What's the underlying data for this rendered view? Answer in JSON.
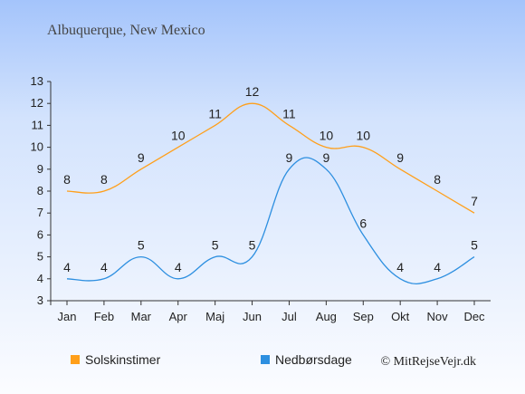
{
  "chart_data": {
    "type": "line",
    "title": "Albuquerque, New Mexico",
    "categories": [
      "Jan",
      "Feb",
      "Mar",
      "Apr",
      "Maj",
      "Jun",
      "Jul",
      "Aug",
      "Sep",
      "Okt",
      "Nov",
      "Dec"
    ],
    "series": [
      {
        "name": "Solskinstimer",
        "color": "#ff9f1a",
        "values": [
          8,
          8,
          9,
          10,
          11,
          12,
          11,
          10,
          10,
          9,
          8,
          7
        ]
      },
      {
        "name": "Nedbørsdage",
        "color": "#2d8fe0",
        "values": [
          4,
          4,
          5,
          4,
          5,
          5,
          9,
          9,
          6,
          4,
          4,
          5
        ]
      }
    ],
    "ylim": [
      3,
      13
    ],
    "yticks": [
      "3",
      "4",
      "5",
      "6",
      "7",
      "8",
      "9",
      "10",
      "11",
      "12",
      "13"
    ],
    "grid": false,
    "legend": "bottom-left",
    "credit": "© MitRejseVejr.dk"
  }
}
